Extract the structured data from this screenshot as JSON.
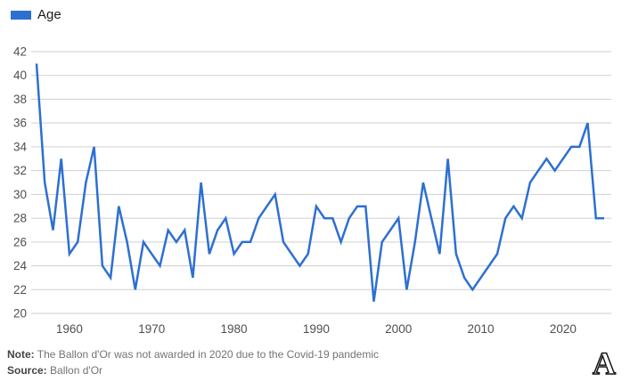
{
  "legend": {
    "label": "Age",
    "swatch_color": "#2e6fd2"
  },
  "chart_data": {
    "type": "line",
    "title": "",
    "series": [
      {
        "name": "Age",
        "color": "#2e6fd2",
        "points": [
          [
            1956,
            41
          ],
          [
            1957,
            31
          ],
          [
            1958,
            27
          ],
          [
            1959,
            33
          ],
          [
            1960,
            25
          ],
          [
            1961,
            26
          ],
          [
            1962,
            31
          ],
          [
            1963,
            34
          ],
          [
            1964,
            24
          ],
          [
            1965,
            23
          ],
          [
            1966,
            29
          ],
          [
            1967,
            26
          ],
          [
            1968,
            22
          ],
          [
            1969,
            26
          ],
          [
            1970,
            25
          ],
          [
            1971,
            24
          ],
          [
            1972,
            27
          ],
          [
            1973,
            26
          ],
          [
            1974,
            27
          ],
          [
            1975,
            23
          ],
          [
            1976,
            31
          ],
          [
            1977,
            25
          ],
          [
            1978,
            27
          ],
          [
            1979,
            28
          ],
          [
            1980,
            25
          ],
          [
            1981,
            26
          ],
          [
            1982,
            26
          ],
          [
            1983,
            28
          ],
          [
            1984,
            29
          ],
          [
            1985,
            30
          ],
          [
            1986,
            26
          ],
          [
            1987,
            25
          ],
          [
            1988,
            24
          ],
          [
            1989,
            25
          ],
          [
            1990,
            29
          ],
          [
            1991,
            28
          ],
          [
            1992,
            28
          ],
          [
            1993,
            26
          ],
          [
            1994,
            28
          ],
          [
            1995,
            29
          ],
          [
            1996,
            29
          ],
          [
            1997,
            21
          ],
          [
            1998,
            26
          ],
          [
            1999,
            27
          ],
          [
            2000,
            28
          ],
          [
            2001,
            22
          ],
          [
            2002,
            26
          ],
          [
            2003,
            31
          ],
          [
            2004,
            28
          ],
          [
            2005,
            25
          ],
          [
            2006,
            33
          ],
          [
            2007,
            25
          ],
          [
            2008,
            23
          ],
          [
            2009,
            22
          ],
          [
            2010,
            23
          ],
          [
            2011,
            24
          ],
          [
            2012,
            25
          ],
          [
            2013,
            28
          ],
          [
            2014,
            29
          ],
          [
            2015,
            28
          ],
          [
            2016,
            31
          ],
          [
            2017,
            32
          ],
          [
            2018,
            33
          ],
          [
            2019,
            32
          ],
          [
            2021,
            34
          ],
          [
            2022,
            34
          ],
          [
            2023,
            36
          ],
          [
            2024,
            28
          ],
          [
            2025,
            28
          ]
        ]
      }
    ],
    "xlim": [
      1956,
      2025
    ],
    "ylim": [
      20,
      42
    ],
    "ytick_step": 2,
    "xticks": [
      1960,
      1970,
      1980,
      1990,
      2000,
      2010,
      2020
    ],
    "grid": "horizontal",
    "grid_color": "#cfcfcf",
    "axis_label_color": "#4f4f4f",
    "legend_position": "top-left",
    "missing_years": [
      2020
    ]
  },
  "footer": {
    "note_label": "Note:",
    "note_text": "The Ballon d'Or was not awarded in 2020 due to the Covid-19 pandemic",
    "source_label": "Source:",
    "source_text": "Ballon d'Or",
    "logo_text": "A"
  }
}
